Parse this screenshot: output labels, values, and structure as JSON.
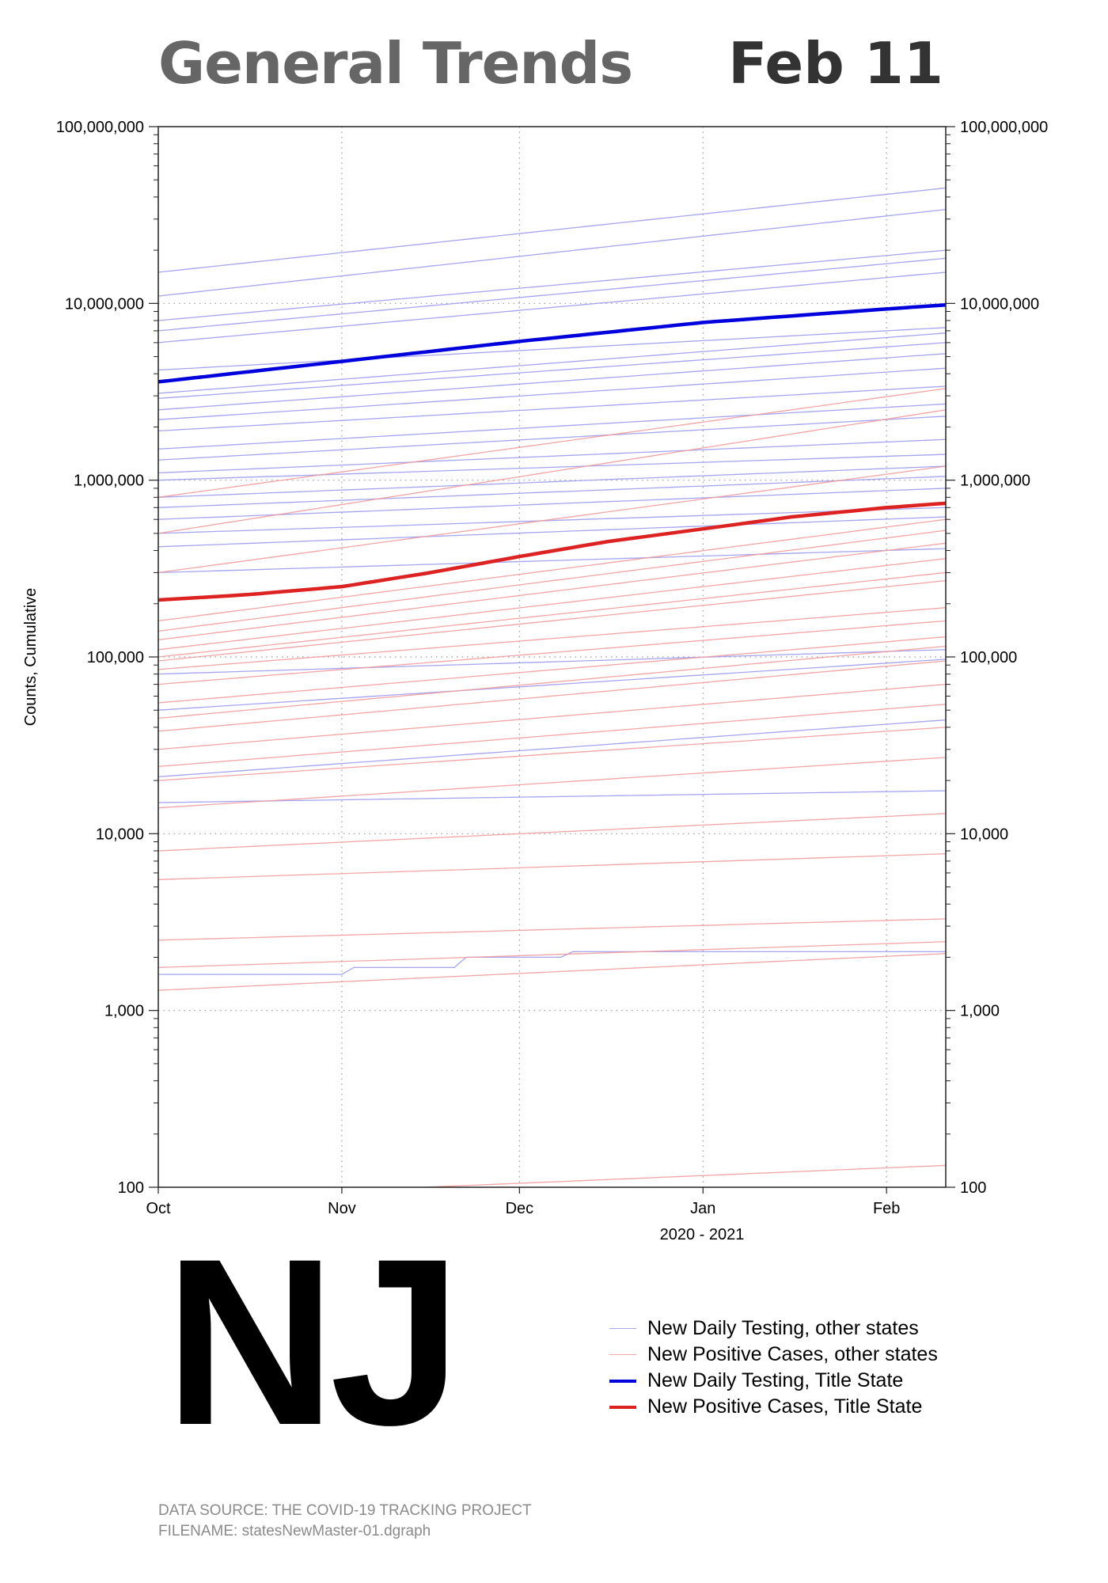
{
  "header": {
    "title": "General Trends",
    "date": "Feb 11"
  },
  "state": "NJ",
  "legend": [
    {
      "label": "New Daily Testing, other states",
      "color": "#a8a8f0",
      "weight": "thin"
    },
    {
      "label": "New Positive Cases, other states",
      "color": "#f5a8a8",
      "weight": "thin"
    },
    {
      "label": "New Daily Testing, Title State",
      "color": "#0000dd",
      "weight": "thick"
    },
    {
      "label": "New Positive Cases, Title State",
      "color": "#dd2222",
      "weight": "thick"
    }
  ],
  "footer": {
    "source": "DATA SOURCE: THE COVID-19 TRACKING PROJECT",
    "filename": "FILENAME: statesNewMaster-01.dgraph"
  },
  "chart_data": {
    "type": "line",
    "title": "General Trends",
    "ylabel": "Counts, Cumulative",
    "xlabel": "2020 - 2021",
    "yscale": "log",
    "ylim": [
      100,
      100000000
    ],
    "xlim": [
      0,
      133
    ],
    "x_unit": "days since Oct 1, 2020",
    "x_ticks": [
      {
        "label": "Oct",
        "value": 0
      },
      {
        "label": "Nov",
        "value": 31
      },
      {
        "label": "Dec",
        "value": 61
      },
      {
        "label": "Jan",
        "value": 92
      },
      {
        "label": "Feb",
        "value": 123
      }
    ],
    "y_ticks": [
      {
        "label": "100",
        "value": 100
      },
      {
        "label": "1,000",
        "value": 1000
      },
      {
        "label": "10,000",
        "value": 10000
      },
      {
        "label": "100,000",
        "value": 100000
      },
      {
        "label": "1,000,000",
        "value": 1000000
      },
      {
        "label": "10,000,000",
        "value": 10000000
      },
      {
        "label": "100,000,000",
        "value": 100000000
      }
    ],
    "series": [
      {
        "name": "New Daily Testing, Title State",
        "role": "title-testing",
        "x": [
          0,
          31,
          61,
          92,
          123,
          133
        ],
        "values": [
          3600000,
          4700000,
          6100000,
          7800000,
          9300000,
          9800000
        ]
      },
      {
        "name": "New Positive Cases, Title State",
        "role": "title-cases",
        "x": [
          0,
          15,
          31,
          46,
          61,
          76,
          92,
          107,
          123,
          133
        ],
        "values": [
          210000,
          225000,
          250000,
          300000,
          370000,
          450000,
          530000,
          620000,
          700000,
          740000
        ]
      },
      {
        "name": "testing-01",
        "role": "other-testing",
        "x": [
          0,
          133
        ],
        "values": [
          15000000,
          45000000
        ]
      },
      {
        "name": "testing-02",
        "role": "other-testing",
        "x": [
          0,
          133
        ],
        "values": [
          11000000,
          34000000
        ]
      },
      {
        "name": "testing-03",
        "role": "other-testing",
        "x": [
          0,
          133
        ],
        "values": [
          8000000,
          20000000
        ]
      },
      {
        "name": "testing-04",
        "role": "other-testing",
        "x": [
          0,
          133
        ],
        "values": [
          7000000,
          18000000
        ]
      },
      {
        "name": "testing-05",
        "role": "other-testing",
        "x": [
          0,
          133
        ],
        "values": [
          6000000,
          15000000
        ]
      },
      {
        "name": "testing-06",
        "role": "other-testing",
        "x": [
          0,
          133
        ],
        "values": [
          4200000,
          7300000
        ]
      },
      {
        "name": "testing-07",
        "role": "other-testing",
        "x": [
          0,
          133
        ],
        "values": [
          3100000,
          6800000
        ]
      },
      {
        "name": "testing-08",
        "role": "other-testing",
        "x": [
          0,
          133
        ],
        "values": [
          2900000,
          6000000
        ]
      },
      {
        "name": "testing-09",
        "role": "other-testing",
        "x": [
          0,
          133
        ],
        "values": [
          2500000,
          5200000
        ]
      },
      {
        "name": "testing-10",
        "role": "other-testing",
        "x": [
          0,
          133
        ],
        "values": [
          2200000,
          4300000
        ]
      },
      {
        "name": "testing-11",
        "role": "other-testing",
        "x": [
          0,
          133
        ],
        "values": [
          1900000,
          3400000
        ]
      },
      {
        "name": "testing-12",
        "role": "other-testing",
        "x": [
          0,
          133
        ],
        "values": [
          1500000,
          2700000
        ]
      },
      {
        "name": "testing-13",
        "role": "other-testing",
        "x": [
          0,
          133
        ],
        "values": [
          1300000,
          2300000
        ]
      },
      {
        "name": "testing-14",
        "role": "other-testing",
        "x": [
          0,
          133
        ],
        "values": [
          1100000,
          1700000
        ]
      },
      {
        "name": "testing-15",
        "role": "other-testing",
        "x": [
          0,
          133
        ],
        "values": [
          1000000,
          1400000
        ]
      },
      {
        "name": "testing-16",
        "role": "other-testing",
        "x": [
          0,
          133
        ],
        "values": [
          800000,
          1200000
        ]
      },
      {
        "name": "testing-17",
        "role": "other-testing",
        "x": [
          0,
          133
        ],
        "values": [
          700000,
          1050000
        ]
      },
      {
        "name": "testing-18",
        "role": "other-testing",
        "x": [
          0,
          133
        ],
        "values": [
          600000,
          900000
        ]
      },
      {
        "name": "testing-19",
        "role": "other-testing",
        "x": [
          0,
          133
        ],
        "values": [
          500000,
          700000
        ]
      },
      {
        "name": "testing-20",
        "role": "other-testing",
        "x": [
          0,
          133
        ],
        "values": [
          420000,
          620000
        ]
      },
      {
        "name": "testing-21",
        "role": "other-testing",
        "x": [
          0,
          133
        ],
        "values": [
          300000,
          410000
        ]
      },
      {
        "name": "testing-22",
        "role": "other-testing",
        "x": [
          0,
          133
        ],
        "values": [
          80000,
          110000
        ]
      },
      {
        "name": "testing-23",
        "role": "other-testing",
        "x": [
          0,
          133
        ],
        "values": [
          50000,
          97000
        ]
      },
      {
        "name": "testing-24",
        "role": "other-testing",
        "x": [
          0,
          133
        ],
        "values": [
          21000,
          44000
        ]
      },
      {
        "name": "testing-25",
        "role": "other-testing",
        "x": [
          0,
          133
        ],
        "values": [
          15000,
          17500
        ]
      },
      {
        "name": "testing-26",
        "role": "other-testing",
        "x": [
          0,
          31,
          33,
          50,
          52,
          68,
          70,
          133
        ],
        "values": [
          1600,
          1600,
          1750,
          1750,
          2000,
          2000,
          2150,
          2150
        ]
      },
      {
        "name": "cases-01",
        "role": "other-cases",
        "x": [
          0,
          133
        ],
        "values": [
          800000,
          3300000
        ]
      },
      {
        "name": "cases-02",
        "role": "other-cases",
        "x": [
          0,
          133
        ],
        "values": [
          500000,
          2500000
        ]
      },
      {
        "name": "cases-03",
        "role": "other-cases",
        "x": [
          0,
          133
        ],
        "values": [
          300000,
          1200000
        ]
      },
      {
        "name": "cases-04",
        "role": "other-cases",
        "x": [
          0,
          133
        ],
        "values": [
          160000,
          600000
        ]
      },
      {
        "name": "cases-05",
        "role": "other-cases",
        "x": [
          0,
          133
        ],
        "values": [
          140000,
          520000
        ]
      },
      {
        "name": "cases-06",
        "role": "other-cases",
        "x": [
          0,
          133
        ],
        "values": [
          125000,
          440000
        ]
      },
      {
        "name": "cases-07",
        "role": "other-cases",
        "x": [
          0,
          133
        ],
        "values": [
          110000,
          360000
        ]
      },
      {
        "name": "cases-08",
        "role": "other-cases",
        "x": [
          0,
          133
        ],
        "values": [
          100000,
          300000
        ]
      },
      {
        "name": "cases-09",
        "role": "other-cases",
        "x": [
          0,
          133
        ],
        "values": [
          95000,
          270000
        ]
      },
      {
        "name": "cases-10",
        "role": "other-cases",
        "x": [
          0,
          133
        ],
        "values": [
          85000,
          190000
        ]
      },
      {
        "name": "cases-11",
        "role": "other-cases",
        "x": [
          0,
          133
        ],
        "values": [
          70000,
          160000
        ]
      },
      {
        "name": "cases-12",
        "role": "other-cases",
        "x": [
          0,
          133
        ],
        "values": [
          55000,
          130000
        ]
      },
      {
        "name": "cases-13",
        "role": "other-cases",
        "x": [
          0,
          133
        ],
        "values": [
          45000,
          115000
        ]
      },
      {
        "name": "cases-14",
        "role": "other-cases",
        "x": [
          0,
          133
        ],
        "values": [
          38000,
          95000
        ]
      },
      {
        "name": "cases-15",
        "role": "other-cases",
        "x": [
          0,
          133
        ],
        "values": [
          30000,
          70000
        ]
      },
      {
        "name": "cases-16",
        "role": "other-cases",
        "x": [
          0,
          133
        ],
        "values": [
          24000,
          54000
        ]
      },
      {
        "name": "cases-17",
        "role": "other-cases",
        "x": [
          0,
          133
        ],
        "values": [
          20000,
          40000
        ]
      },
      {
        "name": "cases-18",
        "role": "other-cases",
        "x": [
          0,
          133
        ],
        "values": [
          14000,
          27000
        ]
      },
      {
        "name": "cases-19",
        "role": "other-cases",
        "x": [
          0,
          133
        ],
        "values": [
          8000,
          13000
        ]
      },
      {
        "name": "cases-20",
        "role": "other-cases",
        "x": [
          0,
          133
        ],
        "values": [
          5500,
          7700
        ]
      },
      {
        "name": "cases-21",
        "role": "other-cases",
        "x": [
          0,
          133
        ],
        "values": [
          2500,
          3300
        ]
      },
      {
        "name": "cases-22",
        "role": "other-cases",
        "x": [
          0,
          133
        ],
        "values": [
          1750,
          2450
        ]
      },
      {
        "name": "cases-23",
        "role": "other-cases",
        "x": [
          0,
          133
        ],
        "values": [
          1300,
          2100
        ]
      },
      {
        "name": "cases-24",
        "role": "other-cases",
        "x": [
          45,
          133
        ],
        "values": [
          100,
          133
        ]
      }
    ]
  }
}
